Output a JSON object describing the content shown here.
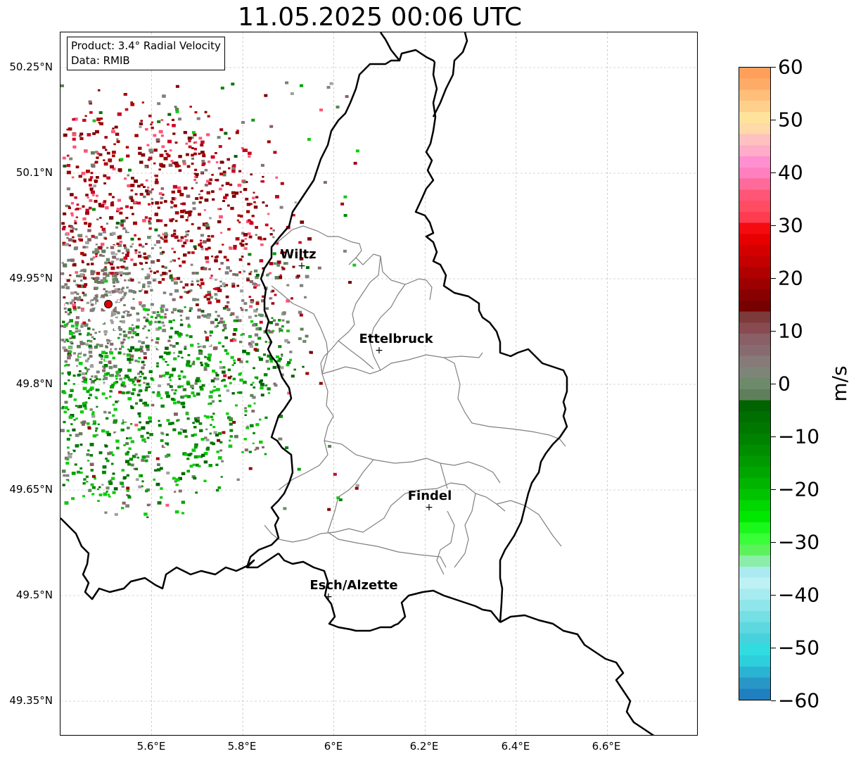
{
  "title": "11.05.2025 00:06 UTC",
  "info": {
    "product": "Product: 3.4° Radial Velocity",
    "data_source": "Data: RMIB"
  },
  "axes": {
    "lat_ticks": [
      "50.25°N",
      "50.1°N",
      "49.95°N",
      "49.8°N",
      "49.65°N",
      "49.5°N",
      "49.35°N"
    ],
    "lon_ticks": [
      "5.6°E",
      "5.8°E",
      "6°E",
      "6.2°E",
      "6.4°E",
      "6.6°E"
    ],
    "lat_values": [
      50.25,
      50.1,
      49.95,
      49.8,
      49.65,
      49.5,
      49.35
    ],
    "lon_values": [
      5.6,
      5.8,
      6.0,
      6.2,
      6.4,
      6.6
    ],
    "extent": {
      "lon_min": 5.4,
      "lon_max": 6.8,
      "lat_min": 49.3,
      "lat_max": 50.3
    }
  },
  "cities": [
    {
      "name": "Wiltz",
      "lon": 5.93,
      "lat": 49.966
    },
    {
      "name": "Ettelbruck",
      "lon": 6.1,
      "lat": 49.847
    },
    {
      "name": "Findel",
      "lon": 6.21,
      "lat": 49.627
    },
    {
      "name": "Esch/Alzette",
      "lon": 5.99,
      "lat": 49.5
    }
  ],
  "radar_site": {
    "lon": 5.505,
    "lat": 49.914,
    "color": "#e00000"
  },
  "colorbar": {
    "label": "m/s",
    "min": -60,
    "max": 60,
    "tick_labels": [
      "60",
      "50",
      "40",
      "30",
      "20",
      "10",
      "0",
      "−10",
      "−20",
      "−30",
      "−40",
      "−50",
      "−60"
    ],
    "tick_values": [
      60,
      50,
      40,
      30,
      20,
      10,
      0,
      -10,
      -20,
      -30,
      -40,
      -50,
      -60
    ],
    "colors_top_to_bottom": [
      "#ff9f5a",
      "#ffab68",
      "#ffbe7a",
      "#ffcf8c",
      "#ffe39b",
      "#ffd9a8",
      "#ffc0c0",
      "#ffacc8",
      "#ff8fd0",
      "#ff7fbf",
      "#ff6a9a",
      "#ff5577",
      "#ff4c63",
      "#ff3b50",
      "#f50a10",
      "#e60000",
      "#d40000",
      "#c40000",
      "#b00000",
      "#9c0000",
      "#880000",
      "#760000",
      "#7d3a3a",
      "#8a4a52",
      "#8a5f66",
      "#876b70",
      "#867b78",
      "#7d8578",
      "#6d8a6a",
      "#5f7f5a",
      "#006400",
      "#006e00",
      "#007800",
      "#008200",
      "#008e00",
      "#009a00",
      "#00a600",
      "#00b400",
      "#00c400",
      "#00d800",
      "#00e800",
      "#1af81a",
      "#38ff38",
      "#5cf25c",
      "#8aeea8",
      "#aaeaf0",
      "#bdf1f4",
      "#a5ebef",
      "#8ee5ea",
      "#74dfe5",
      "#5ed8e0",
      "#46d2dc",
      "#30dce0",
      "#2ccfdb",
      "#2ab3d2",
      "#2897c8",
      "#1f7fbf"
    ]
  },
  "colors": {
    "outbound_dark": "#8b0000",
    "inbound_dark": "#006400",
    "near_zero_gray": "#808080",
    "border_national": "#000000",
    "border_cantonal": "#808080"
  }
}
